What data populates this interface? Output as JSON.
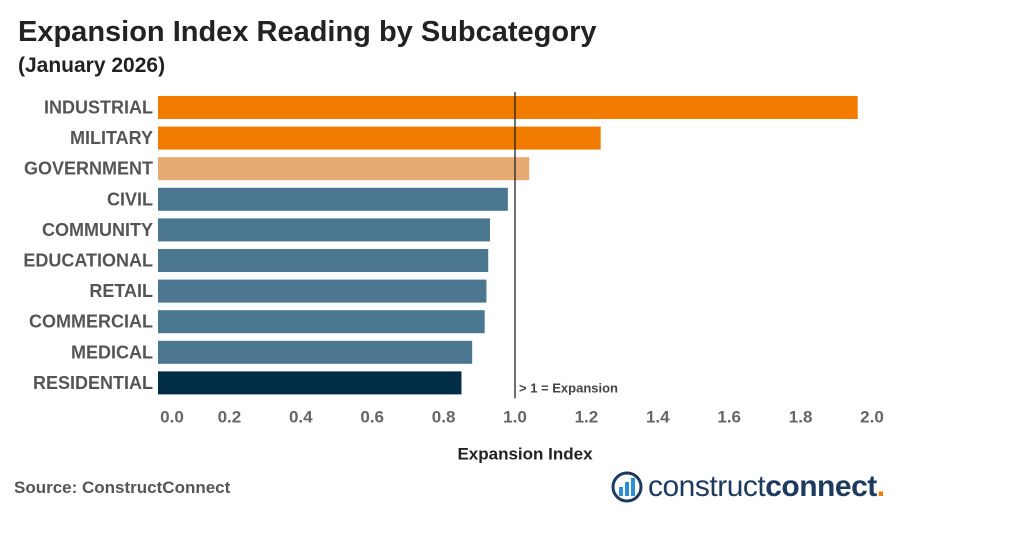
{
  "header": {
    "title": "Expansion Index Reading by Subcategory",
    "subtitle": "(January 2026)"
  },
  "footer": {
    "source": "Source: ConstructConnect",
    "logo_light": "construct",
    "logo_bold": "connect",
    "logo_dot": "."
  },
  "colors": {
    "strong_orange": "#f07b00",
    "light_orange": "#e6aa73",
    "steel_blue": "#4a7690",
    "dark_navy": "#002c46",
    "reference_line": "#222222"
  },
  "chart_data": {
    "type": "bar",
    "orientation": "horizontal",
    "title": "Expansion Index Reading by Subcategory",
    "subtitle": "(January 2026)",
    "xlabel": "Expansion Index",
    "ylabel": "",
    "xlim": [
      0.0,
      2.0
    ],
    "x_ticks": [
      "0.0",
      "0.2",
      "0.4",
      "0.6",
      "0.8",
      "1.0",
      "1.2",
      "1.4",
      "1.6",
      "1.8",
      "2.0"
    ],
    "grid": false,
    "categories": [
      "INDUSTRIAL",
      "MILITARY",
      "GOVERNMENT",
      "CIVIL",
      "COMMUNITY",
      "EDUCATIONAL",
      "RETAIL",
      "COMMERCIAL",
      "MEDICAL",
      "RESIDENTIAL"
    ],
    "values": [
      1.96,
      1.24,
      1.04,
      0.98,
      0.93,
      0.925,
      0.92,
      0.915,
      0.88,
      0.85
    ],
    "bar_colors": [
      "#f07b00",
      "#f07b00",
      "#e6aa73",
      "#4a7690",
      "#4a7690",
      "#4a7690",
      "#4a7690",
      "#4a7690",
      "#4a7690",
      "#002c46"
    ],
    "reference_line": {
      "x": 1.0,
      "label": "> 1 = Expansion"
    }
  }
}
